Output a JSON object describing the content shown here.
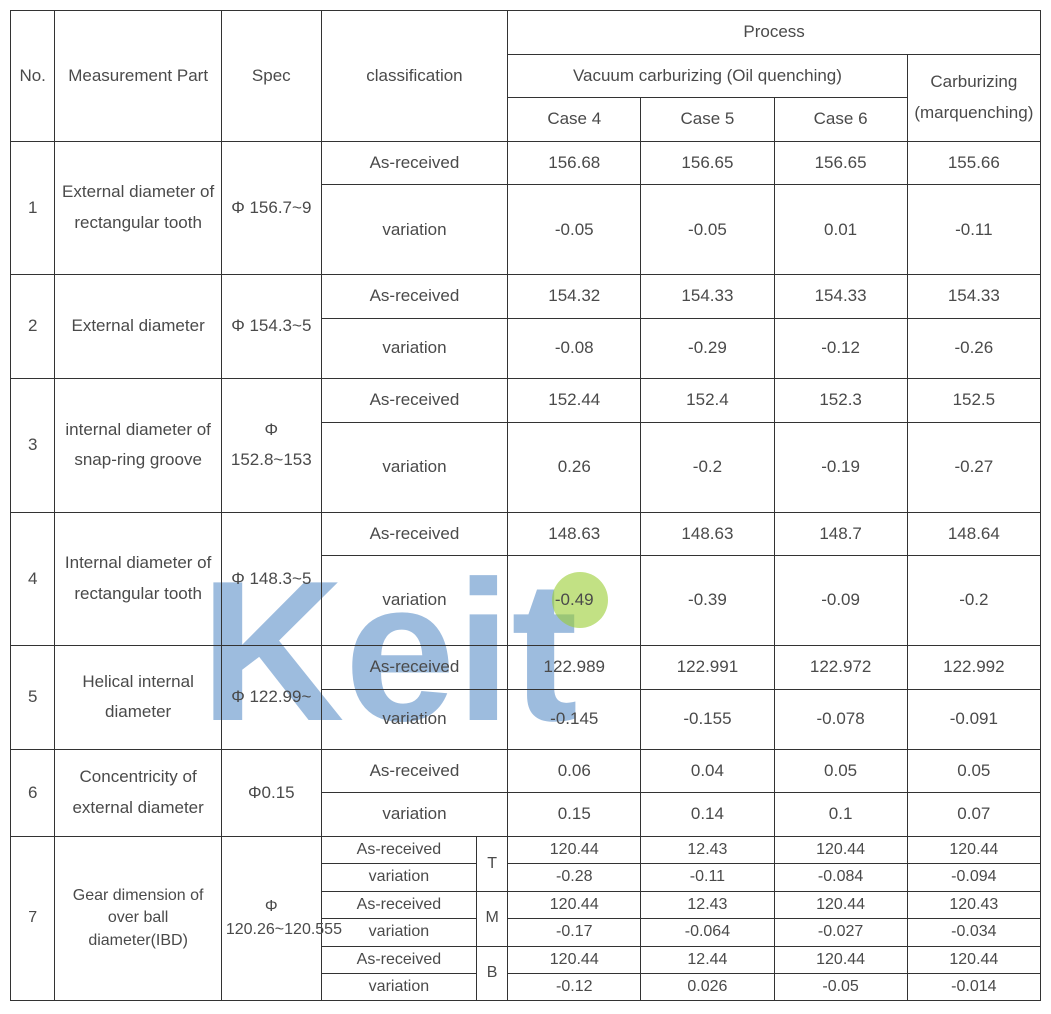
{
  "header": {
    "no": "No.",
    "measurement_part": "Measurement Part",
    "spec": "Spec",
    "classification": "classification",
    "process": "Process",
    "vacuum": "Vacuum carburizing (Oil quenching)",
    "carburizing": "Carburizing (marquenching)",
    "case4": "Case 4",
    "case5": "Case 5",
    "case6": "Case 6"
  },
  "labels": {
    "as_received": "As-received",
    "variation": "variation",
    "T": "T",
    "M": "M",
    "B": "B"
  },
  "rows": [
    {
      "no": "1",
      "part": "External diameter of rectangular tooth",
      "spec": "Φ 156.7~9",
      "as": {
        "c4": "156.68",
        "c5": "156.65",
        "c6": "156.65",
        "carb": "155.66"
      },
      "var": {
        "c4": "-0.05",
        "c5": "-0.05",
        "c6": "0.01",
        "carb": "-0.11"
      }
    },
    {
      "no": "2",
      "part": "External diameter",
      "spec": "Φ 154.3~5",
      "as": {
        "c4": "154.32",
        "c5": "154.33",
        "c6": "154.33",
        "carb": "154.33"
      },
      "var": {
        "c4": "-0.08",
        "c5": "-0.29",
        "c6": "-0.12",
        "carb": "-0.26"
      }
    },
    {
      "no": "3",
      "part": "internal diameter of snap-ring groove",
      "spec": "Φ 152.8~153",
      "as": {
        "c4": "152.44",
        "c5": "152.4",
        "c6": "152.3",
        "carb": "152.5"
      },
      "var": {
        "c4": "0.26",
        "c5": "-0.2",
        "c6": "-0.19",
        "carb": "-0.27"
      }
    },
    {
      "no": "4",
      "part": "Internal diameter of rectangular tooth",
      "spec": "Φ 148.3~5",
      "as": {
        "c4": "148.63",
        "c5": "148.63",
        "c6": "148.7",
        "carb": "148.64"
      },
      "var": {
        "c4": "-0.49",
        "c5": "-0.39",
        "c6": "-0.09",
        "carb": "-0.2"
      }
    },
    {
      "no": "5",
      "part": "Helical internal diameter",
      "spec": "Φ 122.99~",
      "as": {
        "c4": "122.989",
        "c5": "122.991",
        "c6": "122.972",
        "carb": "122.992"
      },
      "var": {
        "c4": "-0.145",
        "c5": "-0.155",
        "c6": "-0.078",
        "carb": "-0.091"
      }
    },
    {
      "no": "6",
      "part": "Concentricity of external diameter",
      "spec": "Φ0.15",
      "as": {
        "c4": "0.06",
        "c5": "0.04",
        "c6": "0.05",
        "carb": "0.05"
      },
      "var": {
        "c4": "0.15",
        "c5": "0.14",
        "c6": "0.1",
        "carb": "0.07"
      }
    }
  ],
  "row7": {
    "no": "7",
    "part": "Gear dimension of over ball diameter(IBD)",
    "spec": "Φ 120.26~120.555",
    "T": {
      "as": {
        "c4": "120.44",
        "c5": "12.43",
        "c6": "120.44",
        "carb": "120.44"
      },
      "var": {
        "c4": "-0.28",
        "c5": "-0.11",
        "c6": "-0.084",
        "carb": "-0.094"
      }
    },
    "M": {
      "as": {
        "c4": "120.44",
        "c5": "12.43",
        "c6": "120.44",
        "carb": "120.43"
      },
      "var": {
        "c4": "-0.17",
        "c5": "-0.064",
        "c6": "-0.027",
        "carb": "-0.034"
      }
    },
    "B": {
      "as": {
        "c4": "120.44",
        "c5": "12.44",
        "c6": "120.44",
        "carb": "120.44"
      },
      "var": {
        "c4": "-0.12",
        "c5": "0.026",
        "c6": "-0.05",
        "carb": "-0.014"
      }
    }
  },
  "watermark": {
    "text": "Keit",
    "color": "#3d7bbf",
    "dot_color": "#9acd32"
  }
}
